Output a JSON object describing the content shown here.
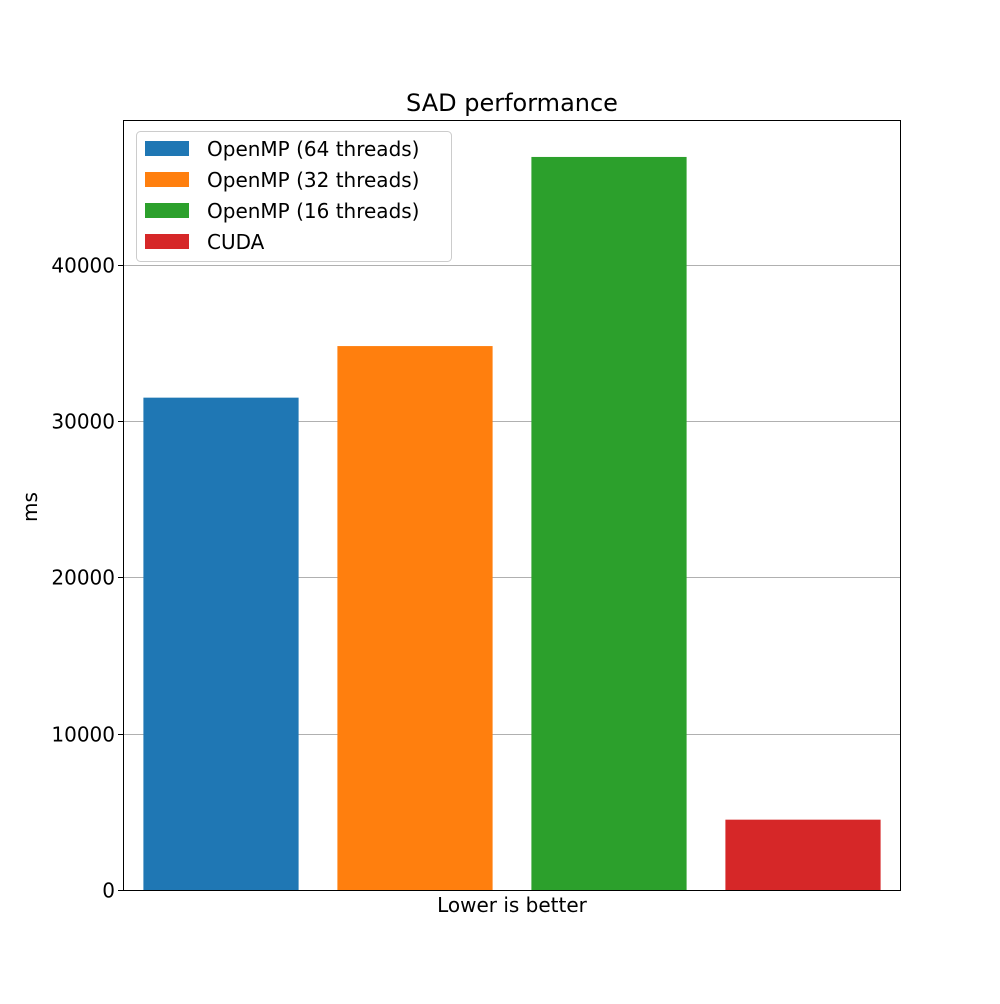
{
  "chart_data": {
    "type": "bar",
    "title": "SAD performance",
    "xlabel": "Lower is better",
    "ylabel": "ms",
    "ylim": [
      0,
      49200
    ],
    "yticks": [
      0,
      10000,
      20000,
      30000,
      40000
    ],
    "ytick_labels": [
      "0",
      "10000",
      "20000",
      "30000",
      "40000"
    ],
    "grid": "y",
    "legend_position": "top-left",
    "series": [
      {
        "name": "OpenMP (64 threads)",
        "value": 31500,
        "color": "#1f77b4"
      },
      {
        "name": "OpenMP (32 threads)",
        "value": 34800,
        "color": "#ff7f0e"
      },
      {
        "name": "OpenMP (16 threads)",
        "value": 46900,
        "color": "#2ca02c"
      },
      {
        "name": "CUDA",
        "value": 4500,
        "color": "#d62728"
      }
    ]
  }
}
